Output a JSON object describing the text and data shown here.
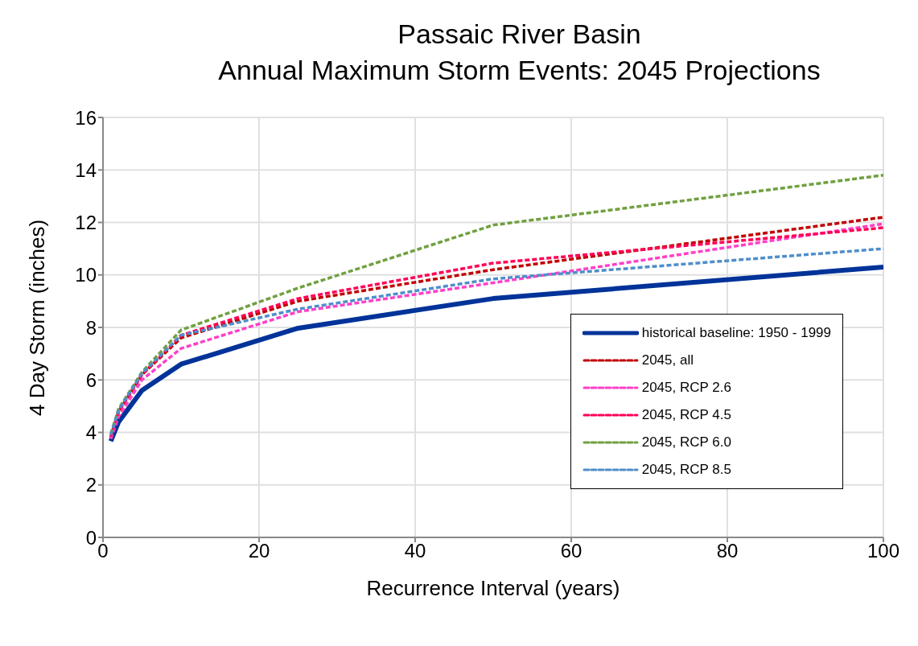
{
  "chart_data": {
    "type": "line",
    "title": "Passaic River Basin",
    "subtitle": "Annual Maximum Storm Events: 2045 Projections",
    "xlabel": "Recurrence Interval (years)",
    "ylabel": "4 Day Storm (inches)",
    "x": [
      1,
      2,
      5,
      10,
      25,
      50,
      100
    ],
    "series": [
      {
        "name": "historical baseline: 1950 - 1999",
        "color": "#003399",
        "line_style": "solid",
        "values": [
          3.67,
          4.4,
          5.6,
          6.6,
          7.97,
          9.1,
          10.3
        ]
      },
      {
        "name": "2045, all",
        "color": "#c00000",
        "line_style": "dashed",
        "values": [
          3.8,
          4.8,
          6.2,
          7.6,
          9.0,
          10.2,
          12.2
        ]
      },
      {
        "name": "2045, RCP 2.6",
        "color": "#ff40c8",
        "line_style": "dashed",
        "values": [
          3.75,
          4.6,
          6.0,
          7.2,
          8.6,
          9.7,
          11.95
        ]
      },
      {
        "name": "2045, RCP 4.5",
        "color": "#ff0055",
        "line_style": "dashed",
        "values": [
          3.85,
          4.8,
          6.2,
          7.7,
          9.1,
          10.45,
          11.8
        ]
      },
      {
        "name": "2045, RCP 6.0",
        "color": "#70a040",
        "line_style": "dashed",
        "values": [
          3.95,
          4.9,
          6.3,
          7.9,
          9.5,
          11.9,
          13.8
        ]
      },
      {
        "name": "2045, RCP 8.5",
        "color": "#4f8ec9",
        "line_style": "dashed",
        "values": [
          3.9,
          4.85,
          6.25,
          7.7,
          8.7,
          9.85,
          11.0
        ]
      }
    ],
    "xlim": [
      0,
      100
    ],
    "xticks": [
      0,
      20,
      40,
      60,
      80,
      100
    ],
    "ylim": [
      0,
      16
    ],
    "yticks": [
      0,
      2,
      4,
      6,
      8,
      10,
      12,
      14,
      16
    ],
    "grid": true,
    "legend": "bottom right",
    "marker": "none"
  }
}
